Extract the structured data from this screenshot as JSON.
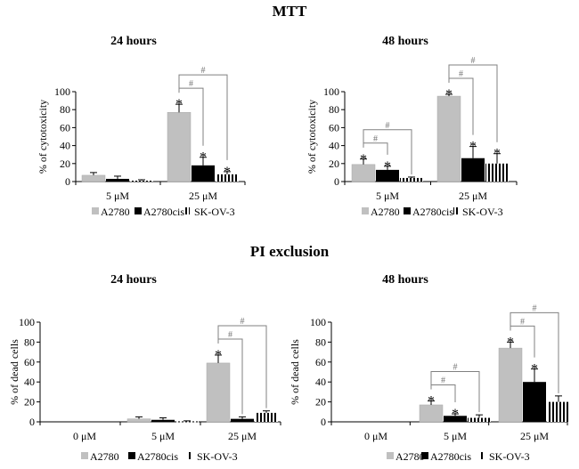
{
  "titles": {
    "mtt": "MTT",
    "pi": "PI exclusion"
  },
  "colors": {
    "A2780": "#c0c0c0",
    "A2780cis": "#000000",
    "SK-OV-3": "stripes",
    "bracket": "#808080"
  },
  "chart_data": [
    {
      "type": "bar",
      "section": "MTT",
      "title": "24 hours",
      "ylabel": "% of cytotoxicity",
      "ylim": [
        0,
        100
      ],
      "yticks": [
        0,
        20,
        40,
        60,
        80,
        100
      ],
      "categories": [
        "5 μM",
        "25 μM"
      ],
      "legend": [
        "A2780",
        "A2780cis",
        "SK-OV-3"
      ],
      "legend_position": "bottom",
      "series": [
        {
          "name": "A2780",
          "values": [
            7,
            77
          ],
          "errors": [
            3,
            9
          ],
          "significant": [
            false,
            true
          ]
        },
        {
          "name": "A2780cis",
          "values": [
            3,
            18
          ],
          "errors": [
            3,
            9
          ],
          "significant": [
            false,
            true
          ]
        },
        {
          "name": "SK-OV-3",
          "values": [
            1,
            8
          ],
          "errors": [
            1,
            3
          ],
          "significant": [
            false,
            true
          ]
        }
      ],
      "brackets": [
        {
          "category": 1,
          "from": 0,
          "to": 1,
          "label": "#"
        },
        {
          "category": 1,
          "from": 0,
          "to": 2,
          "label": "#"
        }
      ],
      "star_label": "*"
    },
    {
      "type": "bar",
      "section": "MTT",
      "title": "48 hours",
      "ylabel": "% of cytotoxicity",
      "ylim": [
        0,
        100
      ],
      "yticks": [
        0,
        20,
        40,
        60,
        80,
        100
      ],
      "categories": [
        "5 μM",
        "25 μM"
      ],
      "legend": [
        "A2780",
        "A2780cis",
        "SK-OV-3"
      ],
      "legend_position": "bottom",
      "series": [
        {
          "name": "A2780",
          "values": [
            19,
            95
          ],
          "errors": [
            6,
            2
          ],
          "significant": [
            true,
            true
          ]
        },
        {
          "name": "A2780cis",
          "values": [
            13,
            26
          ],
          "errors": [
            4,
            13
          ],
          "significant": [
            true,
            true
          ]
        },
        {
          "name": "SK-OV-3",
          "values": [
            4,
            20
          ],
          "errors": [
            1,
            11
          ],
          "significant": [
            false,
            true
          ]
        }
      ],
      "brackets": [
        {
          "category": 0,
          "from": 0,
          "to": 1,
          "label": "#"
        },
        {
          "category": 0,
          "from": 0,
          "to": 2,
          "label": "#"
        },
        {
          "category": 1,
          "from": 0,
          "to": 1,
          "label": "#"
        },
        {
          "category": 1,
          "from": 0,
          "to": 2,
          "label": "#"
        }
      ],
      "star_label": "*"
    },
    {
      "type": "bar",
      "section": "PI exclusion",
      "title": "24 hours",
      "ylabel": "% of dead cells",
      "ylim": [
        0,
        100
      ],
      "yticks": [
        0,
        20,
        40,
        60,
        80,
        100
      ],
      "categories": [
        "0 μM",
        "5 μM",
        "25 μM"
      ],
      "legend": [
        "A2780",
        "A2780cis",
        "SK-OV-3"
      ],
      "legend_position": "bottom",
      "series": [
        {
          "name": "A2780",
          "values": [
            0,
            3,
            59
          ],
          "errors": [
            0,
            2,
            8
          ],
          "significant": [
            false,
            false,
            true
          ]
        },
        {
          "name": "A2780cis",
          "values": [
            0,
            2,
            3
          ],
          "errors": [
            0,
            2,
            2
          ],
          "significant": [
            false,
            false,
            false
          ]
        },
        {
          "name": "SK-OV-3",
          "values": [
            0,
            0.5,
            9
          ],
          "errors": [
            0,
            0.5,
            2
          ],
          "significant": [
            false,
            false,
            false
          ]
        }
      ],
      "brackets": [
        {
          "category": 2,
          "from": 0,
          "to": 1,
          "label": "#"
        },
        {
          "category": 2,
          "from": 0,
          "to": 2,
          "label": "#"
        }
      ],
      "star_label": "*"
    },
    {
      "type": "bar",
      "section": "PI exclusion",
      "title": "48 hours",
      "ylabel": "% of dead cells",
      "ylim": [
        0,
        100
      ],
      "yticks": [
        0,
        20,
        40,
        60,
        80,
        100
      ],
      "categories": [
        "0 μM",
        "5 μM",
        "25 μM"
      ],
      "legend": [
        "A2780",
        "A2780cis",
        "SK-OV-3"
      ],
      "legend_position": "bottom",
      "series": [
        {
          "name": "A2780",
          "values": [
            0,
            17,
            74
          ],
          "errors": [
            0,
            4,
            6
          ],
          "significant": [
            false,
            true,
            true
          ]
        },
        {
          "name": "A2780cis",
          "values": [
            0,
            6,
            40
          ],
          "errors": [
            0,
            2,
            13
          ],
          "significant": [
            false,
            true,
            true
          ]
        },
        {
          "name": "SK-OV-3",
          "values": [
            0,
            4,
            20
          ],
          "errors": [
            0,
            3,
            6
          ],
          "significant": [
            false,
            false,
            false
          ]
        }
      ],
      "brackets": [
        {
          "category": 1,
          "from": 0,
          "to": 1,
          "label": "#"
        },
        {
          "category": 1,
          "from": 0,
          "to": 2,
          "label": "#"
        },
        {
          "category": 2,
          "from": 0,
          "to": 1,
          "label": "#"
        },
        {
          "category": 2,
          "from": 0,
          "to": 2,
          "label": "#"
        }
      ],
      "star_label": "*"
    }
  ]
}
